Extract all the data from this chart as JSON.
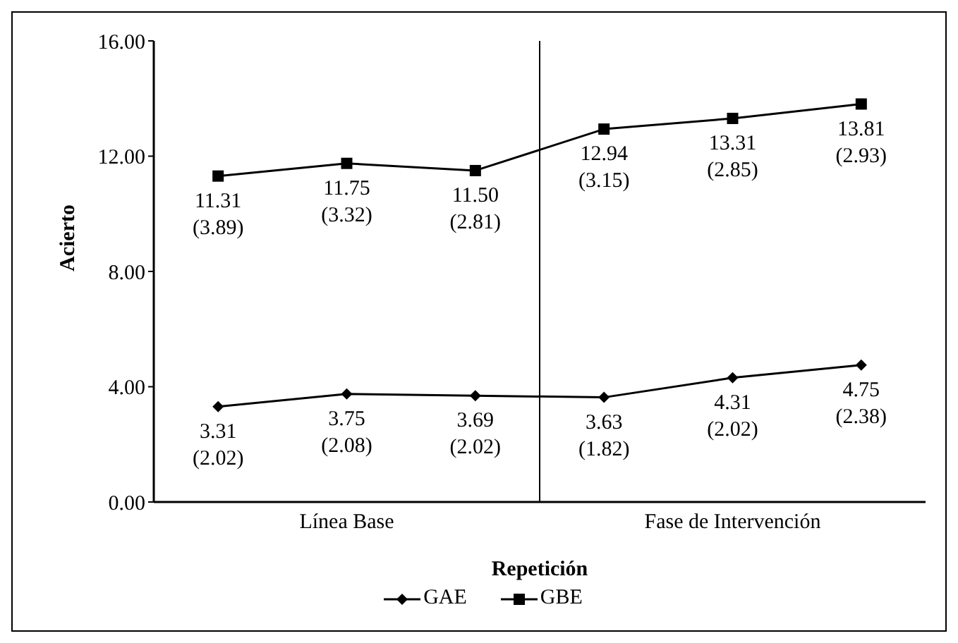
{
  "chart_data": {
    "type": "line",
    "xlabel": "Repetición",
    "ylabel": "Acierto",
    "categories": [
      null,
      "Línea Base",
      null,
      null,
      "Fase de Intervención",
      null
    ],
    "ylim": [
      0,
      16
    ],
    "yticks": [
      {
        "value": 0,
        "label": "0.00"
      },
      {
        "value": 4,
        "label": "4.00"
      },
      {
        "value": 8,
        "label": "8.00"
      },
      {
        "value": 12,
        "label": "12.00"
      },
      {
        "value": 16,
        "label": "16.00"
      }
    ],
    "series": [
      {
        "name": "GAE",
        "color": "#000000",
        "marker": "diamond",
        "values": [
          3.31,
          3.75,
          3.69,
          3.63,
          4.31,
          4.75
        ],
        "value_labels": [
          "3.31\n(2.02)",
          "3.75\n(2.08)",
          "3.69\n(2.02)",
          "3.63\n(1.82)",
          "4.31\n(2.02)",
          "4.75\n(2.38)"
        ]
      },
      {
        "name": "GBE",
        "color": "#000000",
        "marker": "square",
        "values": [
          11.31,
          11.75,
          11.5,
          12.94,
          13.31,
          13.81
        ],
        "value_labels": [
          "11.31\n(3.89)",
          "11.75\n(3.32)",
          "11.50\n(2.81)",
          "12.94\n(3.15)",
          "13.31\n(2.85)",
          "13.81\n(2.93)"
        ]
      }
    ],
    "grid": false,
    "legend": "bottom"
  }
}
